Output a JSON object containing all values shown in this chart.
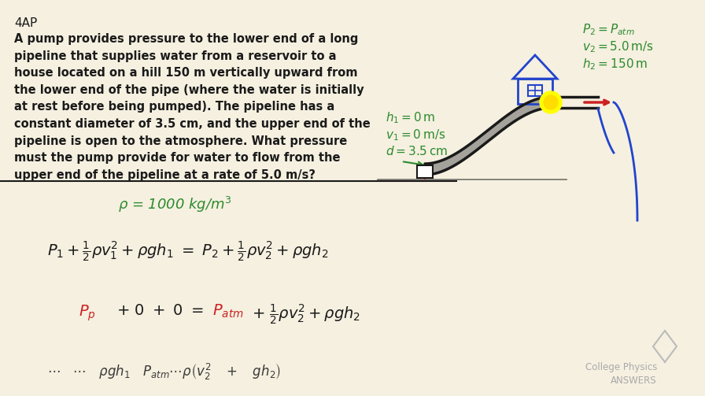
{
  "bg_color": "#f5f0e0",
  "title_text": "4AP",
  "problem_text": "A pump provides pressure to the lower end of a long\npipeline that supplies water from a reservoir to a\nhouse located on a hill 150 m vertically upward from\nthe lower end of the pipe (where the water is initially\nat rest before being pumped). The pipeline has a\nconstant diameter of 3.5 cm, and the upper end of the\npipeline is open to the atmosphere. What pressure\nmust the pump provide for water to flow from the\nupper end of the pipeline at a rate of 5.0 m/s?",
  "rho_text": "ρ = 1000 kg/m³",
  "bernoulli_eq": "P₁ + ½ρv₁² + ρgh₁  =  P₂ + ½ρv₂² + ρgh₂",
  "simplified_eq": "P_p + 0 + 0  =  P_atm + ½ρv₂² + ρgh₂",
  "left_labels": [
    "h₁ = 0m",
    "v₁ = 0 m/s",
    "d = 3.5cm"
  ],
  "right_labels": [
    "P₂ = P_atm",
    "v₂ = 5.0 m/s",
    "h₂ = 150m"
  ],
  "green_color": "#2d8a2d",
  "red_color": "#cc2222",
  "black_color": "#1a1a1a",
  "blue_color": "#2244cc",
  "gray_color": "#888888",
  "watermark_text": "College Physics\nANSWERS"
}
